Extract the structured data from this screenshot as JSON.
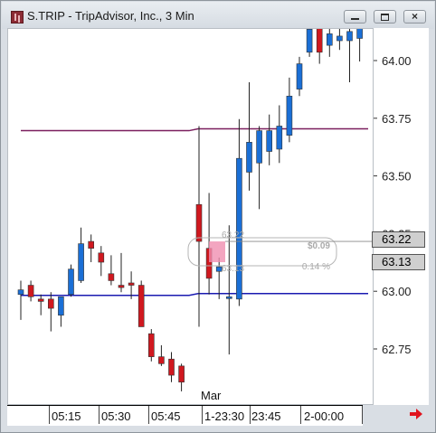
{
  "window": {
    "title": "S.TRIP - TripAdvisor, Inc., 3 Min",
    "buttons": {
      "close_glyph": "×"
    }
  },
  "yaxis": {
    "ticks": [
      "64.00",
      "63.75",
      "63.50",
      "63.25",
      "63.00",
      "62.75"
    ],
    "price_tags": [
      "63.22",
      "63.13"
    ]
  },
  "xaxis": {
    "labels": [
      "05:15",
      "05:30",
      "05:45",
      "1-23:30",
      "23:45",
      "2-00:00"
    ],
    "month_label": "Mar"
  },
  "cursor_info": {
    "high": "63.22",
    "low": "63.13",
    "change": "$0.09",
    "change_pct": "0.14 %"
  },
  "colors": {
    "up": "#1a6fd6",
    "down": "#d0181f",
    "resistance_line": "#7a1f5e",
    "support_line": "#1a1ab0",
    "highlight": "#f08fb0"
  },
  "chart_data": {
    "type": "candlestick",
    "symbol": "S.TRIP",
    "interval": "3 Min",
    "ylim": [
      62.55,
      64.18
    ],
    "horizontal_lines": [
      63.7,
      62.99
    ],
    "candles": [
      {
        "o": 62.99,
        "h": 63.05,
        "l": 62.88,
        "c": 63.01
      },
      {
        "o": 63.03,
        "h": 63.05,
        "l": 62.96,
        "c": 62.98
      },
      {
        "o": 62.97,
        "h": 62.99,
        "l": 62.9,
        "c": 62.96
      },
      {
        "o": 62.97,
        "h": 63.0,
        "l": 62.83,
        "c": 62.93
      },
      {
        "o": 62.9,
        "h": 62.97,
        "l": 62.85,
        "c": 62.98
      },
      {
        "o": 62.99,
        "h": 63.12,
        "l": 62.98,
        "c": 63.1
      },
      {
        "o": 63.05,
        "h": 63.28,
        "l": 63.04,
        "c": 63.21
      },
      {
        "o": 63.22,
        "h": 63.25,
        "l": 63.13,
        "c": 63.19
      },
      {
        "o": 63.17,
        "h": 63.2,
        "l": 63.07,
        "c": 63.13
      },
      {
        "o": 63.08,
        "h": 63.16,
        "l": 63.03,
        "c": 63.05
      },
      {
        "o": 63.03,
        "h": 63.17,
        "l": 63.0,
        "c": 63.02
      },
      {
        "o": 63.04,
        "h": 63.09,
        "l": 62.97,
        "c": 63.03
      },
      {
        "o": 63.03,
        "h": 63.05,
        "l": 62.85,
        "c": 62.85
      },
      {
        "o": 62.82,
        "h": 62.84,
        "l": 62.7,
        "c": 62.72
      },
      {
        "o": 62.72,
        "h": 62.77,
        "l": 62.68,
        "c": 62.69
      },
      {
        "o": 62.71,
        "h": 62.74,
        "l": 62.61,
        "c": 62.64
      },
      {
        "o": 62.68,
        "h": 62.69,
        "l": 62.57,
        "c": 62.61
      },
      {
        "o": 63.38,
        "h": 63.72,
        "l": 62.85,
        "c": 63.22
      },
      {
        "o": 63.19,
        "h": 63.43,
        "l": 62.99,
        "c": 63.06
      },
      {
        "o": 63.09,
        "h": 63.15,
        "l": 62.97,
        "c": 63.11
      },
      {
        "o": 62.98,
        "h": 63.29,
        "l": 62.73,
        "c": 62.98
      },
      {
        "o": 62.97,
        "h": 63.75,
        "l": 62.94,
        "c": 63.58
      },
      {
        "o": 63.52,
        "h": 63.91,
        "l": 63.44,
        "c": 63.65
      },
      {
        "o": 63.56,
        "h": 63.72,
        "l": 63.36,
        "c": 63.7
      },
      {
        "o": 63.61,
        "h": 63.77,
        "l": 63.55,
        "c": 63.7
      },
      {
        "o": 63.62,
        "h": 63.81,
        "l": 63.56,
        "c": 63.72
      },
      {
        "o": 63.68,
        "h": 63.93,
        "l": 63.65,
        "c": 63.85
      },
      {
        "o": 63.88,
        "h": 64.02,
        "l": 63.85,
        "c": 63.99
      },
      {
        "o": 64.04,
        "h": 64.16,
        "l": 64.02,
        "c": 64.14
      },
      {
        "o": 64.15,
        "h": 64.16,
        "l": 63.99,
        "c": 64.04
      },
      {
        "o": 64.07,
        "h": 64.16,
        "l": 64.02,
        "c": 64.12
      },
      {
        "o": 64.09,
        "h": 64.16,
        "l": 64.05,
        "c": 64.11
      },
      {
        "o": 64.09,
        "h": 64.16,
        "l": 63.91,
        "c": 64.13
      },
      {
        "o": 64.1,
        "h": 64.16,
        "l": 64.0,
        "c": 64.15
      }
    ]
  }
}
